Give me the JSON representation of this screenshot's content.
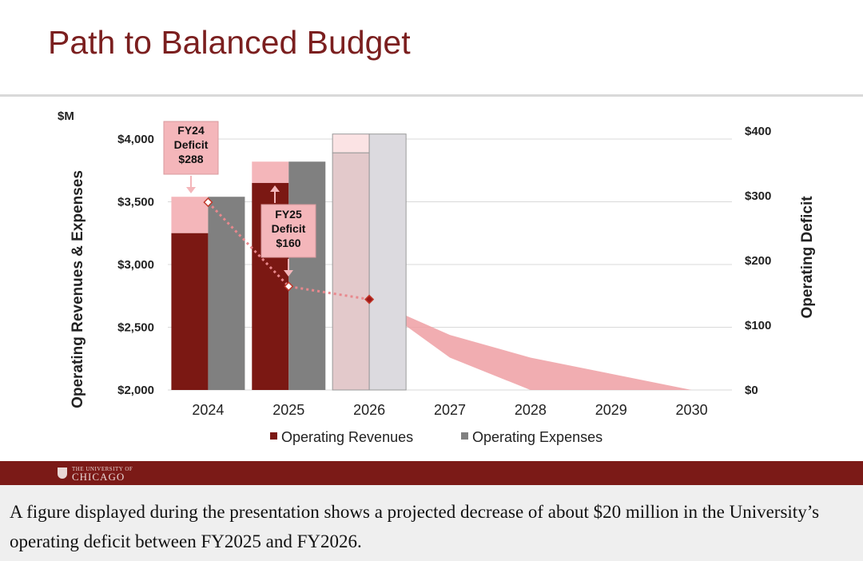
{
  "title": "Path to Balanced Budget",
  "caption": "A figure displayed during the presentation shows a projected decrease of about $20 million in the University’s operating deficit between FY2025 and FY2026.",
  "logo": {
    "line1": "THE UNIVERSITY OF",
    "line2": "CHICAGO"
  },
  "colors": {
    "title": "#7b1f1f",
    "revenue": "#7b1813",
    "expense": "#808080",
    "deficit_block": "#f4b6ba",
    "deficit_line": "#e8888d",
    "band": "#ef9fa3",
    "footer": "#7b1a17"
  },
  "chart_data": {
    "type": "bar",
    "unit_label": "$M",
    "ylabel": "Operating Revenues & Expenses",
    "y2label": "Operating Deficit",
    "ylim": [
      2000,
      4000
    ],
    "y2lim": [
      0,
      400
    ],
    "yticks": [
      "$2,000",
      "$2,500",
      "$3,000",
      "$3,500",
      "$4,000"
    ],
    "y2ticks": [
      "$0",
      "$100",
      "$200",
      "$300",
      "$400"
    ],
    "categories": [
      "2024",
      "2025",
      "2026",
      "2027",
      "2028",
      "2029",
      "2030"
    ],
    "grid": true,
    "legend_position": "bottom",
    "series": [
      {
        "name": "Operating Revenues",
        "values": [
          3250,
          3650,
          3890,
          null,
          null,
          null,
          null
        ]
      },
      {
        "name": "Operating Expenses",
        "values": [
          3540,
          3820,
          4040,
          null,
          null,
          null,
          null
        ]
      }
    ],
    "deficit_line": {
      "x": [
        "2024",
        "2025",
        "2026"
      ],
      "values": [
        290,
        160,
        140
      ]
    },
    "projection_band": {
      "x": [
        "2026",
        "2027",
        "2028",
        "2029",
        "2030"
      ],
      "upper": [
        140,
        85,
        50,
        25,
        0
      ],
      "lower": [
        140,
        50,
        0,
        0,
        0
      ]
    },
    "annotations": [
      {
        "lines": [
          "FY24",
          "Deficit",
          "$288"
        ]
      },
      {
        "lines": [
          "FY25",
          "Deficit",
          "$160"
        ]
      }
    ]
  }
}
